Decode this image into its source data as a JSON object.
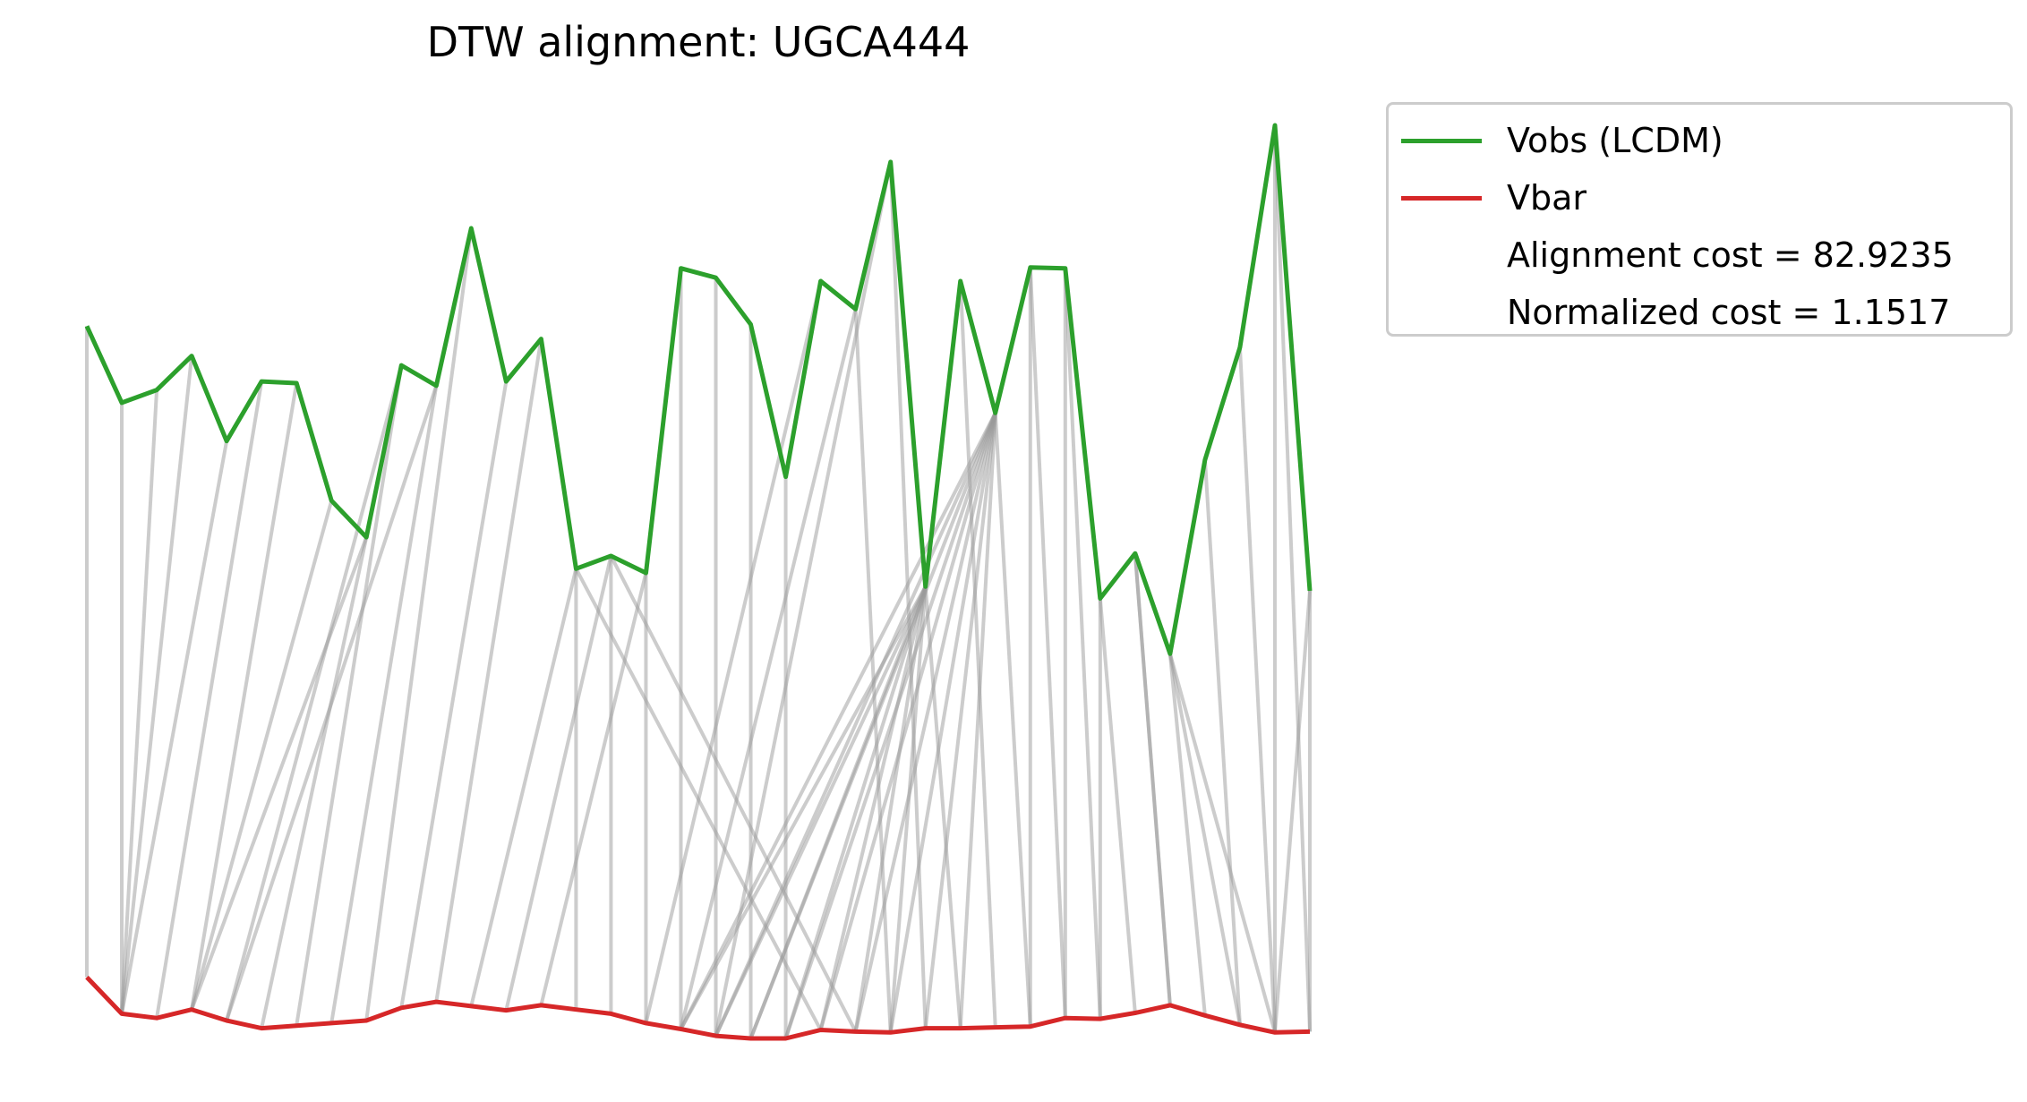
{
  "chart_data": {
    "type": "line",
    "title": "DTW alignment: UGCA444",
    "xlabel": "",
    "ylabel": "",
    "axes_visible": false,
    "grid": false,
    "legend_position": "outside-top-right",
    "series": [
      {
        "name": "Vobs (LCDM)",
        "color": "#2ca02c",
        "values": [
          83,
          74,
          75.5,
          79.5,
          69.5,
          76.5,
          76.3,
          62.5,
          58.2,
          78.4,
          76.0,
          94.5,
          76.5,
          81.5,
          54.5,
          56.0,
          54.0,
          89.8,
          88.7,
          83.2,
          65.3,
          88.3,
          85.0,
          102.3,
          52.4,
          88.3,
          72.8,
          89.9,
          89.8,
          51.0,
          56.3,
          44.5,
          67.3,
          80.5,
          106.6,
          51.9
        ]
      },
      {
        "name": "Vbar",
        "color": "#d62728",
        "values": [
          6.5,
          2.2,
          1.7,
          2.7,
          1.4,
          0.5,
          0.8,
          1.1,
          1.4,
          2.9,
          3.6,
          3.1,
          2.6,
          3.2,
          2.7,
          2.2,
          1.1,
          0.4,
          -0.4,
          -0.7,
          -0.7,
          0.3,
          0.1,
          0.0,
          0.5,
          0.5,
          0.6,
          0.7,
          1.7,
          1.6,
          2.3,
          3.2,
          2.0,
          0.9,
          0.0,
          0.1
        ]
      }
    ],
    "alignment_path": [
      [
        0,
        0
      ],
      [
        1,
        1
      ],
      [
        2,
        1
      ],
      [
        3,
        1
      ],
      [
        4,
        1
      ],
      [
        5,
        2
      ],
      [
        6,
        3
      ],
      [
        7,
        3
      ],
      [
        8,
        3
      ],
      [
        9,
        4
      ],
      [
        10,
        4
      ],
      [
        8,
        5
      ],
      [
        9,
        6
      ],
      [
        10,
        7
      ],
      [
        11,
        8
      ],
      [
        12,
        9
      ],
      [
        13,
        10
      ],
      [
        14,
        11
      ],
      [
        15,
        12
      ],
      [
        16,
        13
      ],
      [
        14,
        14
      ],
      [
        15,
        15
      ],
      [
        16,
        16
      ],
      [
        17,
        17
      ],
      [
        18,
        18
      ],
      [
        19,
        19
      ],
      [
        20,
        20
      ],
      [
        14,
        21
      ],
      [
        15,
        22
      ],
      [
        22,
        23
      ],
      [
        23,
        24
      ],
      [
        24,
        25
      ],
      [
        25,
        26
      ],
      [
        26,
        27
      ],
      [
        27,
        28
      ],
      [
        28,
        29
      ],
      [
        29,
        30
      ],
      [
        30,
        31
      ],
      [
        31,
        32
      ],
      [
        32,
        33
      ],
      [
        33,
        34
      ],
      [
        34,
        35
      ],
      [
        35,
        35
      ],
      [
        24,
        17
      ],
      [
        24,
        18
      ],
      [
        26,
        17
      ],
      [
        26,
        18
      ],
      [
        26,
        19
      ],
      [
        26,
        20
      ],
      [
        26,
        21
      ],
      [
        26,
        22
      ],
      [
        26,
        23
      ],
      [
        26,
        24
      ],
      [
        26,
        25
      ],
      [
        21,
        16
      ],
      [
        22,
        17
      ],
      [
        23,
        18
      ],
      [
        24,
        19
      ],
      [
        24,
        20
      ],
      [
        24,
        21
      ],
      [
        24,
        22
      ],
      [
        24,
        23
      ],
      [
        27,
        27
      ],
      [
        28,
        28
      ],
      [
        29,
        29
      ],
      [
        30,
        31
      ],
      [
        31,
        33
      ],
      [
        31,
        34
      ],
      [
        34,
        34
      ],
      [
        35,
        34
      ]
    ],
    "legend_extra": [
      "Alignment cost = 82.9235",
      "Normalized cost = 1.1517"
    ]
  }
}
